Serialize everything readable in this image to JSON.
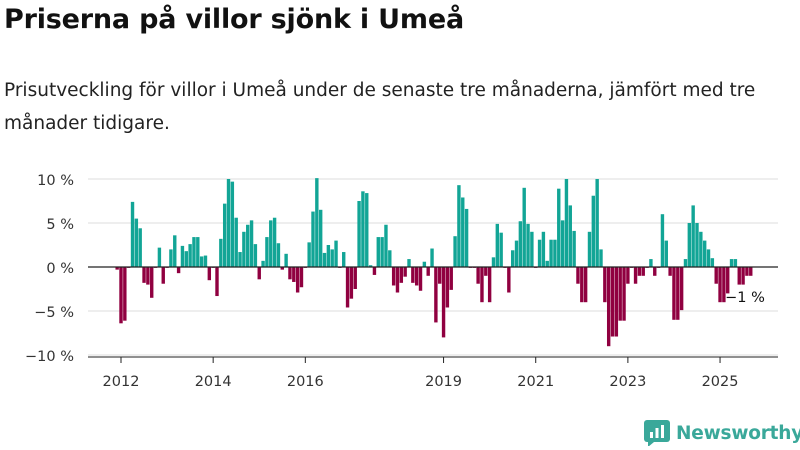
{
  "header": {
    "title": "Priserna på villor sjönk i Umeå",
    "subtitle": "Prisutveckling för villor i Umeå under de senaste tre månaderna, jämfört med tre månader tidigare."
  },
  "brand": {
    "name": "Newsworthy"
  },
  "colors": {
    "positive": "#12a596",
    "negative": "#900040",
    "grid": "#dddddd",
    "axis": "#222222",
    "text": "#333333"
  },
  "chart_data": {
    "type": "bar",
    "start_month": "2011-12",
    "values": [
      -0.3,
      -6.4,
      -6.1,
      -0.1,
      7.4,
      5.5,
      4.4,
      -1.8,
      -2.0,
      -3.5,
      -0.1,
      2.2,
      -1.9,
      -0.1,
      2.0,
      3.6,
      -0.7,
      2.4,
      1.8,
      2.6,
      3.4,
      3.4,
      1.2,
      1.3,
      -1.5,
      -0.1,
      -3.3,
      3.2,
      7.2,
      10.0,
      9.7,
      5.6,
      1.7,
      4.0,
      4.8,
      5.3,
      2.6,
      -1.4,
      0.7,
      3.4,
      5.3,
      5.6,
      2.7,
      -0.3,
      1.5,
      -1.4,
      -1.7,
      -2.9,
      -2.3,
      -0.1,
      2.8,
      6.3,
      10.1,
      6.5,
      1.6,
      2.5,
      2.0,
      3.0,
      -0.1,
      1.7,
      -4.6,
      -3.6,
      -2.5,
      7.5,
      8.6,
      8.4,
      0.2,
      -0.9,
      3.4,
      3.4,
      4.8,
      1.9,
      -2.1,
      -2.9,
      -1.8,
      -1.1,
      0.9,
      -1.8,
      -2.1,
      -2.7,
      0.6,
      -1.0,
      2.1,
      -6.3,
      -1.9,
      -8.0,
      -4.6,
      -2.6,
      3.5,
      9.3,
      7.9,
      6.6,
      -0.1,
      -0.1,
      -1.9,
      -4.0,
      -1.0,
      -4.0,
      1.1,
      4.9,
      3.9,
      -0.1,
      -2.9,
      1.9,
      3.0,
      5.2,
      9.0,
      4.9,
      4.0,
      -0.1,
      3.1,
      4.0,
      0.7,
      3.1,
      3.1,
      8.9,
      5.3,
      10.0,
      7.0,
      4.1,
      -1.9,
      -4.0,
      -4.0,
      4.0,
      8.1,
      10.0,
      2.0,
      -4.0,
      -9.0,
      -7.9,
      -7.9,
      -6.1,
      -6.1,
      -1.9,
      -0.1,
      -1.9,
      -1.0,
      -1.0,
      -0.1,
      0.9,
      -1.0,
      -0.1,
      6.0,
      3.0,
      -1.0,
      -6.0,
      -6.0,
      -4.9,
      0.9,
      5.0,
      7.0,
      5.0,
      4.0,
      3.0,
      2.0,
      1.0,
      -1.9,
      -4.0,
      -4.0,
      -3.0,
      0.9,
      0.9,
      -2.0,
      -2.0,
      -1.0,
      -1.0
    ],
    "y_ticks": [
      {
        "value": 10,
        "label": "10 %"
      },
      {
        "value": 5,
        "label": "5 %"
      },
      {
        "value": 0,
        "label": "0 %"
      },
      {
        "value": -5,
        "label": "−5 %"
      },
      {
        "value": -10,
        "label": "−10 %"
      }
    ],
    "x_ticks": [
      {
        "month": "2012-01",
        "label": "2012"
      },
      {
        "month": "2014-01",
        "label": "2014"
      },
      {
        "month": "2016-01",
        "label": "2016"
      },
      {
        "month": "2019-01",
        "label": "2019"
      },
      {
        "month": "2021-01",
        "label": "2021"
      },
      {
        "month": "2023-01",
        "label": "2023"
      },
      {
        "month": "2025-01",
        "label": "2025"
      }
    ],
    "ylim": [
      -10.5,
      10.5
    ],
    "grid": true,
    "annotation": {
      "label": "−1 %"
    }
  }
}
